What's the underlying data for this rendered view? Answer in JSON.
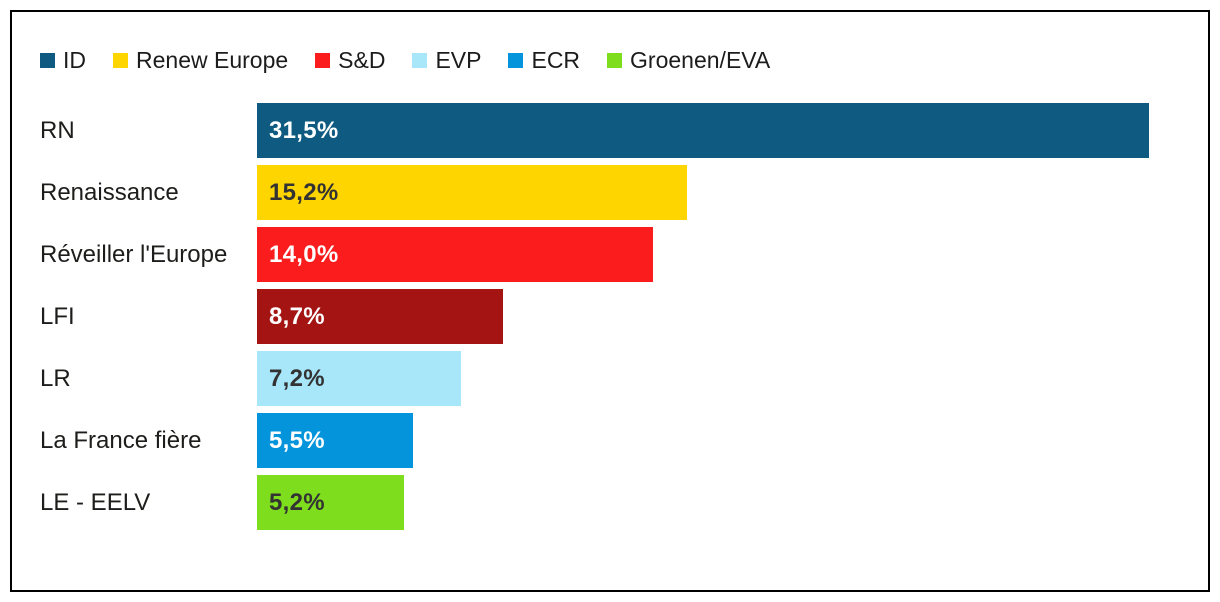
{
  "chart_data": {
    "type": "bar",
    "orientation": "horizontal",
    "unit": "%",
    "value_axis_max": 31.5,
    "grid": false,
    "legend_position": "top",
    "legend": [
      {
        "label": "ID",
        "color": "#0E5A80"
      },
      {
        "label": "Renew Europe",
        "color": "#FFD500"
      },
      {
        "label": "S&D",
        "color": "#FB1D1D"
      },
      {
        "label": "EVP",
        "color": "#A8E6FA"
      },
      {
        "label": "ECR",
        "color": "#0494DB"
      },
      {
        "label": "Groenen/EVA",
        "color": "#7EDE1E"
      }
    ],
    "categories": [
      "RN",
      "Renaissance",
      "Réveiller l'Europe",
      "LFI",
      "LR",
      "La France fière",
      "LE - EELV"
    ],
    "values": [
      31.5,
      15.2,
      14.0,
      8.7,
      7.2,
      5.5,
      5.2
    ],
    "bars": [
      {
        "label": "RN",
        "value": 31.5,
        "value_label": "31,5%",
        "color": "#0E5A80",
        "text_color": "#FFFFFF"
      },
      {
        "label": "Renaissance",
        "value": 15.2,
        "value_label": "15,2%",
        "color": "#FFD500",
        "text_color": "#333333"
      },
      {
        "label": "Réveiller l'Europe",
        "value": 14.0,
        "value_label": "14,0%",
        "color": "#FB1D1D",
        "text_color": "#FFFFFF"
      },
      {
        "label": "LFI",
        "value": 8.7,
        "value_label": "8,7%",
        "color": "#A31413",
        "text_color": "#FFFFFF"
      },
      {
        "label": "LR",
        "value": 7.2,
        "value_label": "7,2%",
        "color": "#A8E6FA",
        "text_color": "#333333"
      },
      {
        "label": "La France fière",
        "value": 5.5,
        "value_label": "5,5%",
        "color": "#0494DB",
        "text_color": "#FFFFFF"
      },
      {
        "label": "LE - EELV",
        "value": 5.2,
        "value_label": "5,2%",
        "color": "#7EDE1E",
        "text_color": "#333333"
      }
    ]
  }
}
